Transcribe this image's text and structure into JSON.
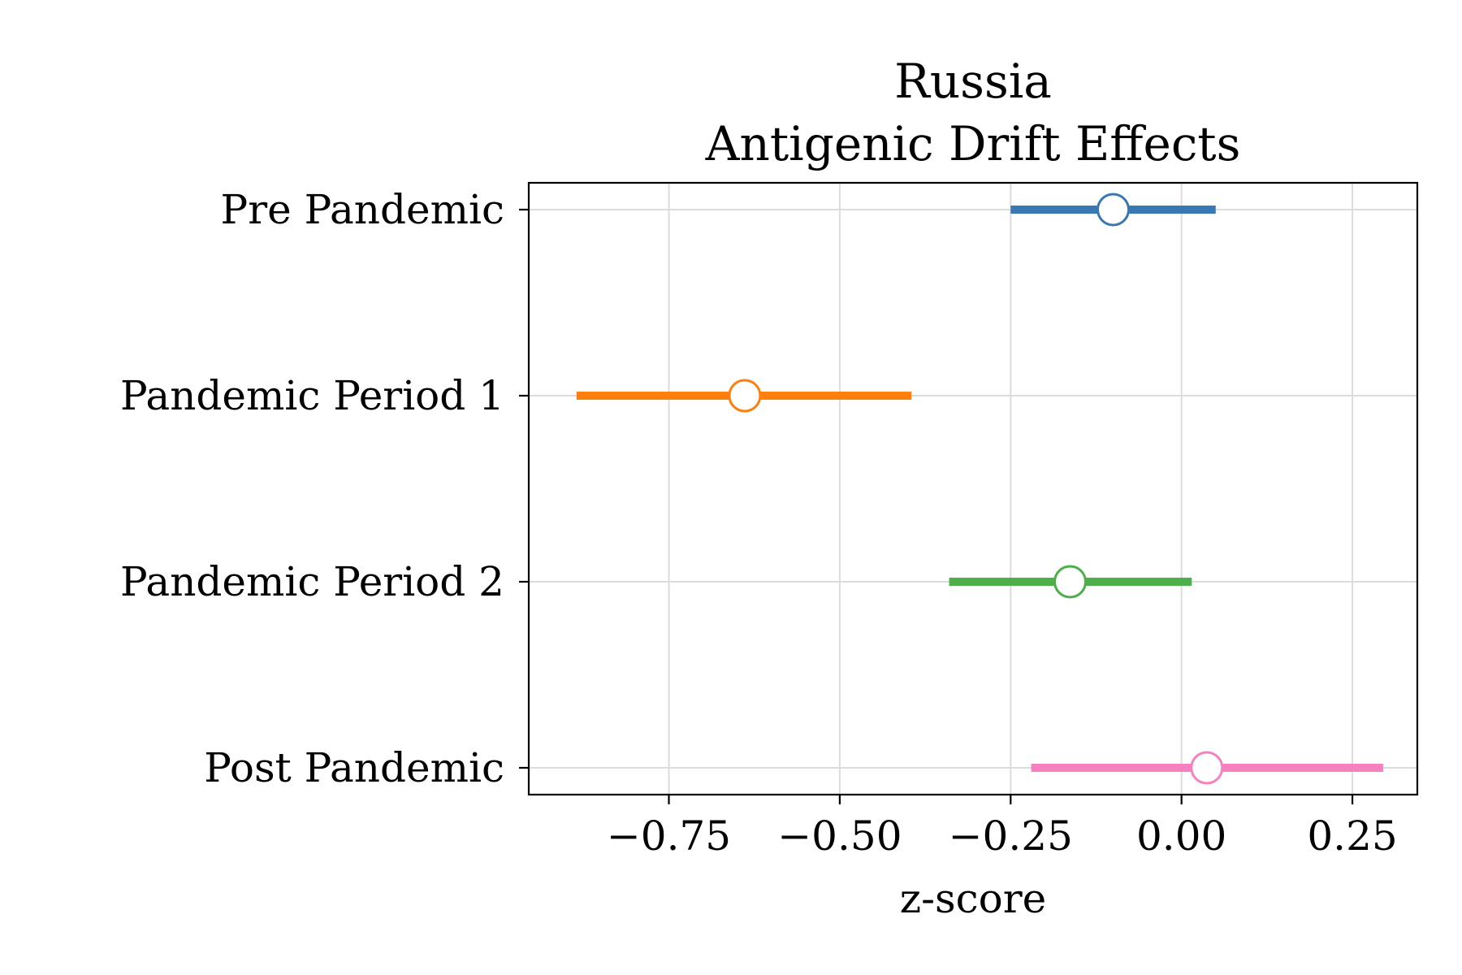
{
  "chart_data": {
    "type": "forest",
    "title": "Russia",
    "subtitle": "Antigenic Drift Effects",
    "xlabel": "z-score",
    "ylabel": "",
    "xlim": [
      -0.955,
      0.345
    ],
    "xticks": [
      -0.75,
      -0.5,
      -0.25,
      0.0,
      0.25
    ],
    "xtick_labels": [
      "−0.75",
      "−0.50",
      "−0.25",
      "0.00",
      "0.25"
    ],
    "grid": true,
    "series": [
      {
        "label": "Pre Pandemic",
        "estimate": -0.1,
        "lower": -0.25,
        "upper": 0.05,
        "color": "#3a78b4"
      },
      {
        "label": "Pandemic Period 1",
        "estimate": -0.639,
        "lower": -0.885,
        "upper": -0.395,
        "color": "#ff7f0e"
      },
      {
        "label": "Pandemic Period 2",
        "estimate": -0.163,
        "lower": -0.34,
        "upper": 0.015,
        "color": "#4daf4a"
      },
      {
        "label": "Post Pandemic",
        "estimate": 0.037,
        "lower": -0.22,
        "upper": 0.295,
        "color": "#f781bf"
      }
    ]
  }
}
